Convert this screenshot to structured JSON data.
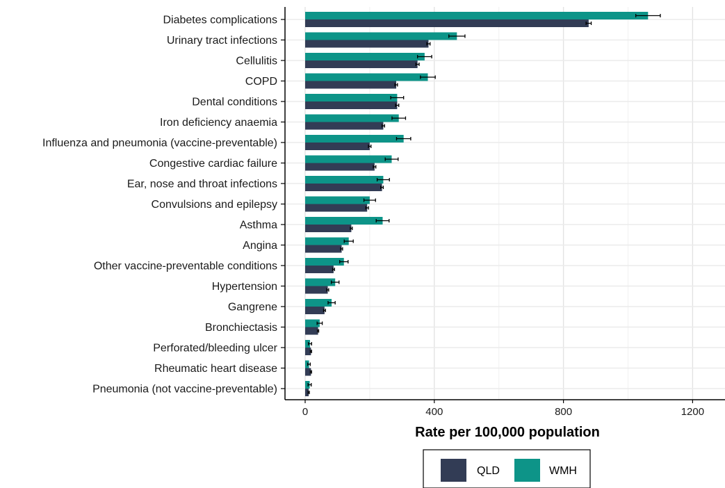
{
  "chart_data": {
    "type": "bar",
    "orientation": "horizontal",
    "title": "",
    "xlabel": "Rate per 100,000 population",
    "ylabel": "",
    "xlim": [
      0,
      1300
    ],
    "xticks": [
      0,
      400,
      800,
      1200
    ],
    "grid": true,
    "legend_position": "bottom",
    "error_bars": true,
    "colors": {
      "QLD": "#323c55",
      "WMH": "#0d9488"
    },
    "categories": [
      "Diabetes complications",
      "Urinary tract infections",
      "Cellulitis",
      "COPD",
      "Dental conditions",
      "Iron deficiency anaemia",
      "Influenza and pneumonia (vaccine-preventable)",
      "Congestive cardiac failure",
      "Ear, nose and throat infections",
      "Convulsions and epilepsy",
      "Asthma",
      "Angina",
      "Other vaccine-preventable conditions",
      "Hypertension",
      "Gangrene",
      "Bronchiectasis",
      "Perforated/bleeding ulcer",
      "Rheumatic heart disease",
      "Pneumonia (not vaccine-preventable)"
    ],
    "series": [
      {
        "name": "WMH",
        "values": [
          1062,
          470,
          370,
          380,
          285,
          290,
          305,
          268,
          242,
          200,
          240,
          135,
          120,
          93,
          82,
          45,
          15,
          12,
          14
        ],
        "error": [
          38,
          25,
          22,
          23,
          20,
          21,
          22,
          20,
          19,
          18,
          20,
          14,
          13,
          12,
          11,
          8,
          5,
          4,
          5
        ]
      },
      {
        "name": "QLD",
        "values": [
          878,
          382,
          348,
          282,
          285,
          242,
          200,
          215,
          238,
          192,
          143,
          113,
          88,
          70,
          60,
          40,
          18,
          18,
          11
        ],
        "error": [
          8,
          5,
          5,
          4,
          5,
          4,
          4,
          4,
          4,
          4,
          3,
          3,
          3,
          3,
          3,
          2,
          2,
          2,
          2
        ]
      }
    ]
  }
}
